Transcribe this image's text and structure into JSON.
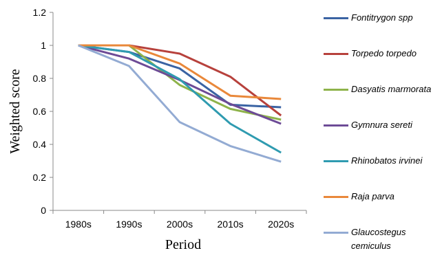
{
  "chart_data": {
    "type": "line",
    "title": "",
    "xlabel": "Period",
    "ylabel": "Weighted score",
    "categories": [
      "1980s",
      "1990s",
      "2000s",
      "2010s",
      "2020s"
    ],
    "ylim": [
      0,
      1.2
    ],
    "yticks": [
      "0",
      "0.2",
      "0.4",
      "0.6",
      "0.8",
      "1",
      "1.2"
    ],
    "grid": false,
    "legend_position": "right",
    "series": [
      {
        "name": "Fontitrygon spp",
        "color": "#3a63a3",
        "values": [
          1.0,
          0.96,
          0.86,
          0.64,
          0.625
        ]
      },
      {
        "name": "Torpedo torpedo",
        "color": "#b7413c",
        "values": [
          1.0,
          1.0,
          0.95,
          0.81,
          0.575
        ]
      },
      {
        "name": "Dasyatis marmorata",
        "color": "#8eb34a",
        "values": [
          1.0,
          1.0,
          0.76,
          0.615,
          0.55
        ]
      },
      {
        "name": "Gymnura sereti",
        "color": "#6d4b96",
        "values": [
          1.0,
          0.92,
          0.79,
          0.645,
          0.525
        ]
      },
      {
        "name": "Rhinobatos irvinei",
        "color": "#2f9bb0",
        "values": [
          1.0,
          0.96,
          0.795,
          0.525,
          0.35
        ]
      },
      {
        "name": "Raja parva",
        "color": "#e9883a",
        "values": [
          1.0,
          1.0,
          0.89,
          0.695,
          0.675
        ]
      },
      {
        "name": "Glaucostegus cemiculus",
        "color": "#93abd3",
        "values": [
          1.0,
          0.875,
          0.535,
          0.39,
          0.295
        ]
      }
    ]
  }
}
